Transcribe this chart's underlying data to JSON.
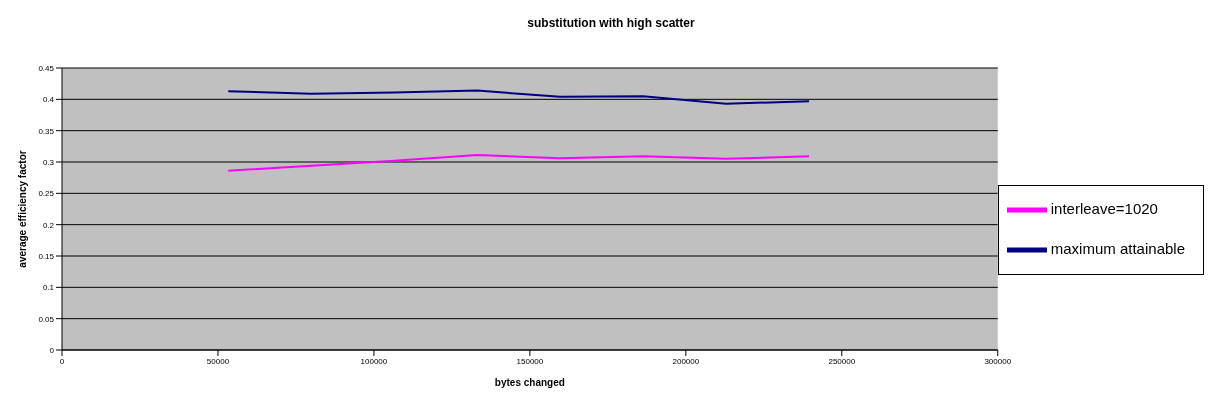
{
  "chart_data": {
    "type": "line",
    "title": "substitution with high scatter",
    "xlabel": "bytes changed",
    "ylabel": "average efficiency factor",
    "x": [
      53300,
      79900,
      106500,
      133100,
      159700,
      186300,
      212900,
      239500
    ],
    "series": [
      {
        "name": "maximum attainable",
        "color": "#000080",
        "values": [
          0.413,
          0.409,
          0.411,
          0.414,
          0.404,
          0.405,
          0.393,
          0.397
        ]
      },
      {
        "name": "interleave=1020",
        "color": "#ff00ff",
        "values": [
          0.286,
          0.294,
          0.302,
          0.311,
          0.306,
          0.309,
          0.305,
          0.309
        ]
      }
    ],
    "xlim": [
      0,
      300000
    ],
    "xticks": [
      0,
      50000,
      100000,
      150000,
      200000,
      250000,
      300000
    ],
    "ylim": [
      0,
      0.45
    ],
    "yticks": [
      0,
      0.05,
      0.1,
      0.15,
      0.2,
      0.25,
      0.3,
      0.35,
      0.4,
      0.45
    ],
    "grid": "y",
    "legend": "right",
    "marker": "none",
    "line_style": "solid"
  }
}
